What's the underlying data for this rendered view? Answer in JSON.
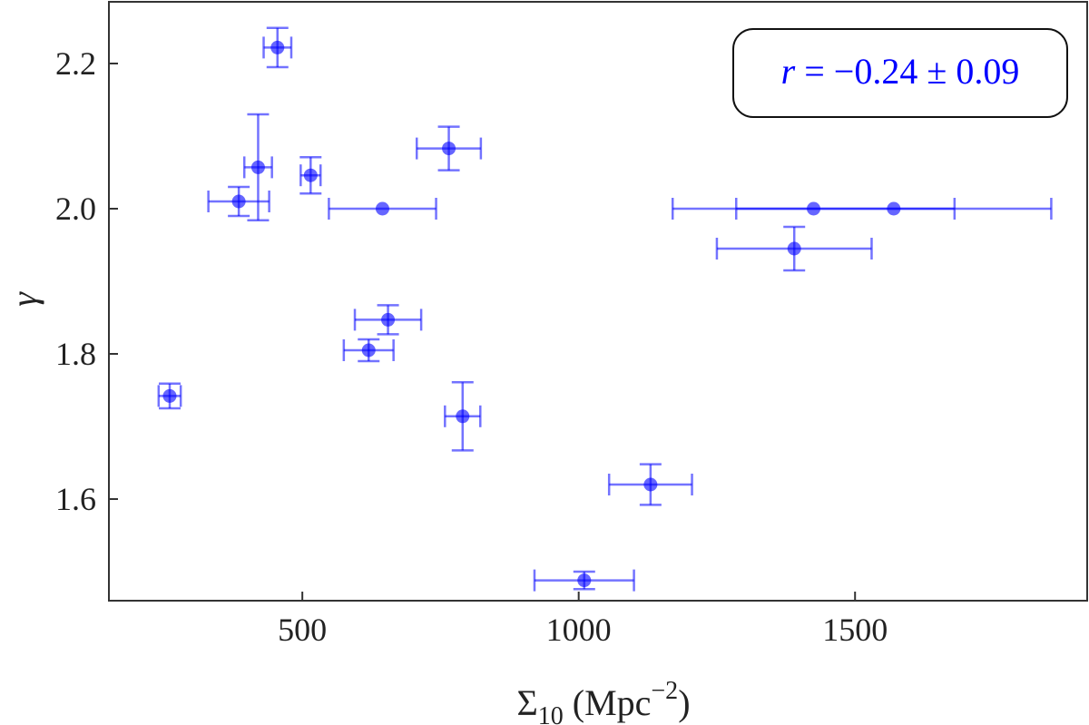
{
  "chart_data": {
    "type": "scatter",
    "title": "",
    "xlabel": {
      "base": "Σ",
      "sub": "10",
      "text": " (Mpc",
      "sup": "−2",
      "close": ")"
    },
    "ylabel": "γ",
    "xlim": [
      150,
      1920
    ],
    "ylim": [
      1.46,
      2.285
    ],
    "xticks": [
      500,
      1000,
      1500
    ],
    "yticks": [
      1.6,
      1.8,
      2.0,
      2.2
    ],
    "xtick_labels": [
      "500",
      "1000",
      "1500"
    ],
    "ytick_labels": [
      "1.6",
      "1.8",
      "2.0",
      "2.2"
    ],
    "grid": false,
    "marker_color": "#0000ff",
    "annotation": {
      "var": "r",
      "text": " = −0.24 ± 0.09",
      "placement": "top-right"
    },
    "points": [
      {
        "x": 260,
        "y": 1.742,
        "xerr": 20,
        "yerr": 0.017
      },
      {
        "x": 385,
        "y": 2.01,
        "xerr": 55,
        "yerr": 0.02
      },
      {
        "x": 420,
        "y": 2.057,
        "xerr": 25,
        "yerr": 0.073
      },
      {
        "x": 455,
        "y": 2.222,
        "xerr": 25,
        "yerr": 0.027
      },
      {
        "x": 515,
        "y": 2.046,
        "xerr": 18,
        "yerr": 0.025
      },
      {
        "x": 645,
        "y": 2.0,
        "xerr": 97,
        "yerr": 0.0
      },
      {
        "x": 620,
        "y": 1.805,
        "xerr": 45,
        "yerr": 0.015
      },
      {
        "x": 655,
        "y": 1.847,
        "xerr": 60,
        "yerr": 0.02
      },
      {
        "x": 765,
        "y": 2.083,
        "xerr": 58,
        "yerr": 0.03
      },
      {
        "x": 790,
        "y": 1.714,
        "xerr": 32,
        "yerr": 0.047
      },
      {
        "x": 1010,
        "y": 1.488,
        "xerr": 90,
        "yerr": 0.012
      },
      {
        "x": 1130,
        "y": 1.62,
        "xerr": 75,
        "yerr": 0.028
      },
      {
        "x": 1390,
        "y": 1.945,
        "xerr": 140,
        "yerr": 0.03
      },
      {
        "x": 1425,
        "y": 2.0,
        "xerr": 255,
        "yerr": 0.0
      },
      {
        "x": 1570,
        "y": 2.0,
        "xerr": 285,
        "yerr": 0.0
      }
    ]
  }
}
